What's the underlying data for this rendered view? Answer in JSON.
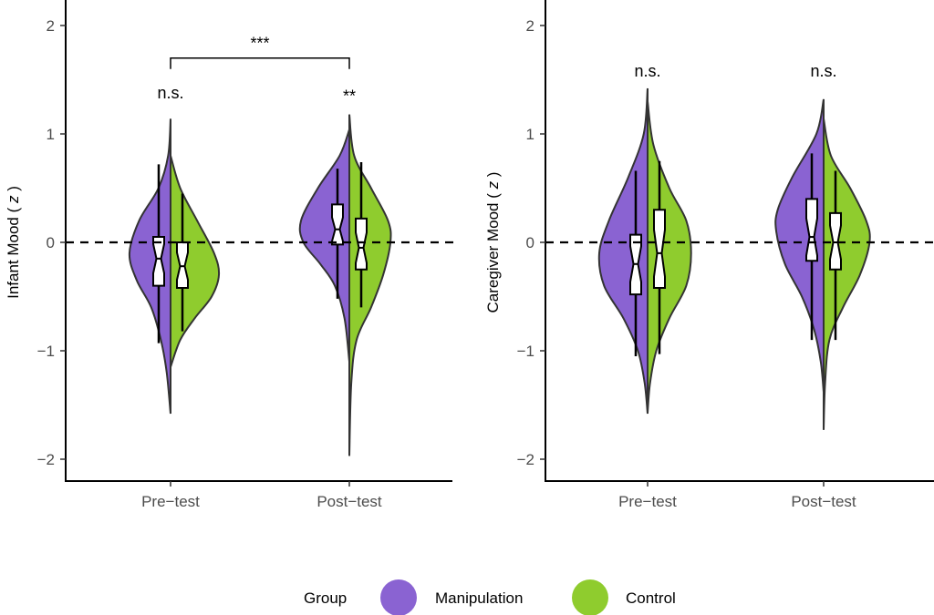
{
  "chart_data": [
    {
      "type": "violin",
      "ylabel": "Infant Mood ( z )",
      "ylabel_main": "Infant Mood (",
      "ylabel_var": "z",
      "ylabel_close": ")",
      "ylim": [
        -2.2,
        2.2
      ],
      "yticks": [
        {
          "v": -2,
          "label": "−2"
        },
        {
          "v": -1,
          "label": "−1"
        },
        {
          "v": 0,
          "label": "0"
        },
        {
          "v": 1,
          "label": "1"
        },
        {
          "v": 2,
          "label": "2"
        }
      ],
      "reference_line": 0,
      "categories": [
        "Pre-test",
        "Post-test"
      ],
      "category_labels": [
        "Pre−test",
        "Post−test"
      ],
      "groups": [
        {
          "category": "Pre-test",
          "series": "Manipulation",
          "box": {
            "lo": -0.93,
            "q1": -0.4,
            "med": -0.15,
            "q3": 0.05,
            "hi": 0.72
          },
          "density": [
            [
              1.14,
              0
            ],
            [
              0.8,
              0.05
            ],
            [
              0.5,
              0.25
            ],
            [
              0.2,
              0.65
            ],
            [
              -0.1,
              0.85
            ],
            [
              -0.35,
              0.7
            ],
            [
              -0.6,
              0.4
            ],
            [
              -0.9,
              0.2
            ],
            [
              -1.2,
              0.08
            ],
            [
              -1.58,
              0
            ]
          ]
        },
        {
          "category": "Pre-test",
          "series": "Control",
          "box": {
            "lo": -0.82,
            "q1": -0.42,
            "med": -0.22,
            "q3": 0.0,
            "hi": 0.45
          },
          "density": [
            [
              0.8,
              0
            ],
            [
              0.5,
              0.2
            ],
            [
              0.2,
              0.55
            ],
            [
              -0.1,
              0.9
            ],
            [
              -0.3,
              1.0
            ],
            [
              -0.5,
              0.85
            ],
            [
              -0.7,
              0.5
            ],
            [
              -0.9,
              0.2
            ],
            [
              -1.15,
              0
            ]
          ]
        },
        {
          "category": "Post-test",
          "series": "Manipulation",
          "box": {
            "lo": -0.52,
            "q1": -0.02,
            "med": 0.12,
            "q3": 0.35,
            "hi": 0.68
          },
          "density": [
            [
              1.04,
              0
            ],
            [
              0.8,
              0.2
            ],
            [
              0.5,
              0.65
            ],
            [
              0.2,
              1.0
            ],
            [
              0.0,
              0.95
            ],
            [
              -0.2,
              0.6
            ],
            [
              -0.4,
              0.3
            ],
            [
              -0.7,
              0.1
            ],
            [
              -1.1,
              0
            ]
          ]
        },
        {
          "category": "Post-test",
          "series": "Control",
          "box": {
            "lo": -0.6,
            "q1": -0.25,
            "med": -0.05,
            "q3": 0.22,
            "hi": 0.74
          },
          "density": [
            [
              1.18,
              0
            ],
            [
              0.8,
              0.1
            ],
            [
              0.5,
              0.45
            ],
            [
              0.2,
              0.8
            ],
            [
              0.0,
              0.85
            ],
            [
              -0.3,
              0.7
            ],
            [
              -0.6,
              0.45
            ],
            [
              -0.9,
              0.15
            ],
            [
              -1.3,
              0.04
            ],
            [
              -1.97,
              0
            ]
          ]
        }
      ],
      "annotations": [
        {
          "category": "Pre-test",
          "text": "n.s.",
          "y": 1.38
        },
        {
          "category": "Post-test",
          "text": "**",
          "y": 1.35
        }
      ],
      "bracket": {
        "from": "Pre-test",
        "to": "Post-test",
        "y": 1.7,
        "text": "***"
      }
    },
    {
      "type": "violin",
      "ylabel": "Caregiver Mood ( z )",
      "ylabel_main": "Caregiver Mood (",
      "ylabel_var": "z",
      "ylabel_close": ")",
      "ylim": [
        -2.2,
        2.2
      ],
      "yticks": [
        {
          "v": -2,
          "label": "−2"
        },
        {
          "v": -1,
          "label": "−1"
        },
        {
          "v": 0,
          "label": "0"
        },
        {
          "v": 1,
          "label": "1"
        },
        {
          "v": 2,
          "label": "2"
        }
      ],
      "reference_line": 0,
      "categories": [
        "Pre-test",
        "Post-test"
      ],
      "category_labels": [
        "Pre−test",
        "Post−test"
      ],
      "groups": [
        {
          "category": "Pre-test",
          "series": "Manipulation",
          "box": {
            "lo": -1.05,
            "q1": -0.48,
            "med": -0.2,
            "q3": 0.07,
            "hi": 0.66
          },
          "density": [
            [
              1.42,
              0
            ],
            [
              1.0,
              0.08
            ],
            [
              0.6,
              0.4
            ],
            [
              0.2,
              0.8
            ],
            [
              -0.1,
              1.0
            ],
            [
              -0.4,
              0.9
            ],
            [
              -0.7,
              0.5
            ],
            [
              -1.0,
              0.2
            ],
            [
              -1.3,
              0.06
            ],
            [
              -1.58,
              0
            ]
          ]
        },
        {
          "category": "Pre-test",
          "series": "Control",
          "box": {
            "lo": -1.03,
            "q1": -0.42,
            "med": -0.1,
            "q3": 0.3,
            "hi": 0.75
          },
          "density": [
            [
              1.3,
              0
            ],
            [
              0.9,
              0.12
            ],
            [
              0.5,
              0.45
            ],
            [
              0.2,
              0.8
            ],
            [
              -0.1,
              0.9
            ],
            [
              -0.4,
              0.8
            ],
            [
              -0.7,
              0.45
            ],
            [
              -1.0,
              0.18
            ],
            [
              -1.3,
              0.05
            ],
            [
              -1.57,
              0
            ]
          ]
        },
        {
          "category": "Post-test",
          "series": "Manipulation",
          "box": {
            "lo": -0.9,
            "q1": -0.17,
            "med": 0.05,
            "q3": 0.4,
            "hi": 0.82
          },
          "density": [
            [
              1.32,
              0
            ],
            [
              1.0,
              0.15
            ],
            [
              0.6,
              0.65
            ],
            [
              0.3,
              0.95
            ],
            [
              0.1,
              0.98
            ],
            [
              -0.2,
              0.8
            ],
            [
              -0.5,
              0.45
            ],
            [
              -0.8,
              0.2
            ],
            [
              -1.1,
              0.06
            ],
            [
              -1.38,
              0
            ]
          ]
        },
        {
          "category": "Post-test",
          "series": "Control",
          "box": {
            "lo": -0.9,
            "q1": -0.25,
            "med": 0.0,
            "q3": 0.27,
            "hi": 0.66
          },
          "density": [
            [
              1.14,
              0
            ],
            [
              0.8,
              0.15
            ],
            [
              0.5,
              0.55
            ],
            [
              0.2,
              0.88
            ],
            [
              0.0,
              0.95
            ],
            [
              -0.3,
              0.75
            ],
            [
              -0.6,
              0.4
            ],
            [
              -0.9,
              0.12
            ],
            [
              -1.3,
              0.03
            ],
            [
              -1.73,
              0
            ]
          ]
        }
      ],
      "annotations": [
        {
          "category": "Pre-test",
          "text": "n.s.",
          "y": 1.58
        },
        {
          "category": "Post-test",
          "text": "n.s.",
          "y": 1.58
        }
      ]
    }
  ],
  "legend": {
    "title": "Group",
    "position": "bottom",
    "items": [
      {
        "label": "Manipulation",
        "color": "#8a63d2"
      },
      {
        "label": "Control",
        "color": "#8fcc2e"
      }
    ]
  },
  "colors": {
    "Manipulation": "#8a63d2",
    "Control": "#8fcc2e"
  }
}
